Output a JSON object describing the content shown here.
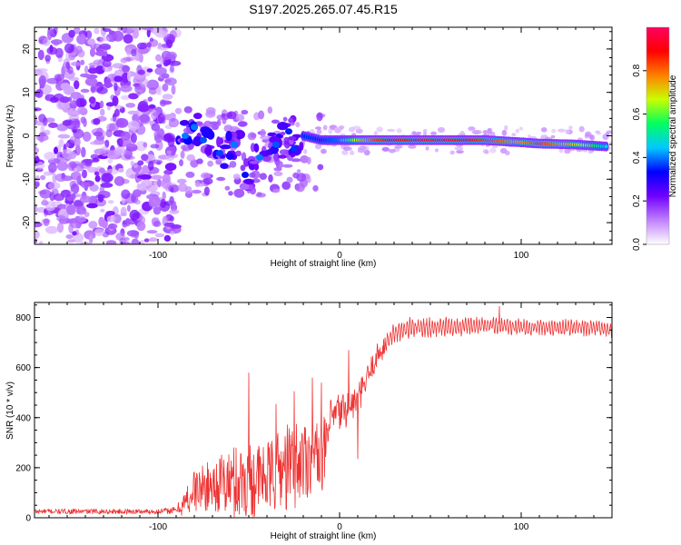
{
  "title": "S197.2025.265.07.45.R15",
  "colors": {
    "snr_line": "#ee3333",
    "axis": "#000000",
    "background": "#ffffff"
  },
  "chart_data": [
    {
      "type": "heatmap",
      "name": "spectrogram",
      "xlabel": "Height of straight line (km)",
      "ylabel": "Frequency (Hz)",
      "xlim": [
        -168,
        150
      ],
      "ylim": [
        -25,
        25
      ],
      "x_ticks": [
        -100,
        0,
        100
      ],
      "x_tick_labels": [
        "-100",
        "0",
        "100"
      ],
      "y_ticks": [
        -20,
        -10,
        0,
        10,
        20
      ],
      "y_tick_labels": [
        "-20",
        "-10",
        "0",
        "10",
        "20"
      ],
      "colorbar": {
        "label": "Normalized spectral amplitude",
        "range": [
          0,
          1
        ],
        "ticks": [
          0.0,
          0.2,
          0.4,
          0.6,
          0.8
        ],
        "tick_labels": [
          "0.0",
          "0.2",
          "0.4",
          "0.6",
          "0.8"
        ],
        "colors": [
          "#ffffff",
          "#c080ff",
          "#7000ff",
          "#0000ff",
          "#00c8ff",
          "#00ff60",
          "#c8ff00",
          "#ff8000",
          "#ff0000",
          "#ff0060"
        ]
      },
      "carrier_track": [
        {
          "x": -20,
          "f": 0.0,
          "a": 0.35
        },
        {
          "x": -10,
          "f": -1.0,
          "a": 0.35
        },
        {
          "x": 0,
          "f": -1.0,
          "a": 0.4
        },
        {
          "x": 10,
          "f": -1.0,
          "a": 0.7
        },
        {
          "x": 20,
          "f": -1.0,
          "a": 0.85
        },
        {
          "x": 40,
          "f": -1.0,
          "a": 0.95
        },
        {
          "x": 60,
          "f": -1.0,
          "a": 0.95
        },
        {
          "x": 80,
          "f": -1.0,
          "a": 0.85
        },
        {
          "x": 100,
          "f": -1.5,
          "a": 0.75
        },
        {
          "x": 110,
          "f": -1.8,
          "a": 0.85
        },
        {
          "x": 130,
          "f": -2.0,
          "a": 0.7
        },
        {
          "x": 148,
          "f": -2.5,
          "a": 0.45
        }
      ],
      "clusters": [
        {
          "x": -85,
          "f": 0,
          "a": 0.3
        },
        {
          "x": -80,
          "f": 2,
          "a": 0.3
        },
        {
          "x": -75,
          "f": -1,
          "a": 0.28
        },
        {
          "x": -66,
          "f": -4,
          "a": 0.27
        },
        {
          "x": -58,
          "f": -2,
          "a": 0.3
        },
        {
          "x": -52,
          "f": -9,
          "a": 0.24
        },
        {
          "x": -44,
          "f": -5,
          "a": 0.3
        },
        {
          "x": -35,
          "f": -2,
          "a": 0.28
        },
        {
          "x": -28,
          "f": 1,
          "a": 0.25
        },
        {
          "x": -25,
          "f": -3,
          "a": 0.26
        }
      ]
    },
    {
      "type": "line",
      "name": "snr",
      "xlabel": "Height of straight line (km)",
      "ylabel": "SNR (10 * v/v)",
      "xlim": [
        -168,
        150
      ],
      "ylim": [
        0,
        860
      ],
      "x_ticks": [
        -100,
        0,
        100
      ],
      "x_tick_labels": [
        "-100",
        "0",
        "100"
      ],
      "y_ticks": [
        0,
        200,
        400,
        600,
        800
      ],
      "y_tick_labels": [
        "0",
        "200",
        "400",
        "600",
        "800"
      ],
      "envelope": {
        "x": [
          -168,
          -100,
          -90,
          -85,
          -80,
          -70,
          -60,
          -50,
          -40,
          -30,
          -20,
          -12,
          -8,
          -5,
          0,
          5,
          10,
          15,
          20,
          25,
          30,
          40,
          60,
          80,
          100,
          120,
          140,
          150
        ],
        "mean": [
          25,
          25,
          30,
          60,
          110,
          130,
          140,
          150,
          160,
          200,
          230,
          260,
          250,
          390,
          420,
          440,
          470,
          550,
          640,
          690,
          740,
          760,
          760,
          770,
          760,
          760,
          760,
          750
        ],
        "spread": [
          10,
          10,
          15,
          60,
          90,
          100,
          150,
          160,
          140,
          180,
          180,
          120,
          160,
          80,
          90,
          70,
          60,
          60,
          50,
          50,
          50,
          50,
          50,
          40,
          40,
          40,
          40,
          40
        ]
      },
      "spikes": [
        {
          "x": -50,
          "y": 580
        },
        {
          "x": -35,
          "y": 455
        },
        {
          "x": -25,
          "y": 505
        },
        {
          "x": -15,
          "y": 560
        },
        {
          "x": -10,
          "y": 540
        },
        {
          "x": 5,
          "y": 670
        },
        {
          "x": 10,
          "y": 235
        },
        {
          "x": 88,
          "y": 845
        }
      ]
    }
  ]
}
